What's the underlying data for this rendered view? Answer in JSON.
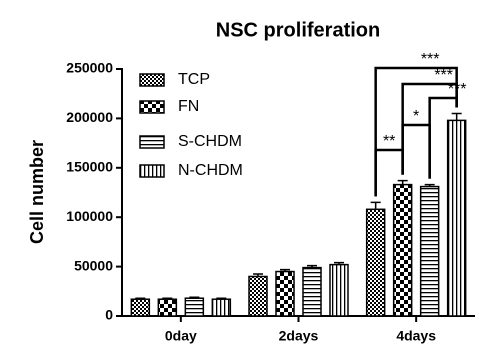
{
  "chart_data": {
    "type": "bar",
    "title": "NSC proliferation",
    "y_label": "Cell number",
    "categories": [
      "0day",
      "2days",
      "4days"
    ],
    "series": [
      {
        "name": "TCP",
        "pattern": "fine-checker",
        "values": [
          17000,
          40000,
          108000
        ],
        "errors": [
          1000,
          2500,
          7000
        ]
      },
      {
        "name": "FN",
        "pattern": "coarse-checker",
        "values": [
          17000,
          45000,
          133000
        ],
        "errors": [
          1000,
          2000,
          4000
        ]
      },
      {
        "name": "S-CHDM",
        "pattern": "horizontal-lines",
        "values": [
          18000,
          49000,
          131000
        ],
        "errors": [
          1000,
          2000,
          2000
        ]
      },
      {
        "name": "N-CHDM",
        "pattern": "vertical-lines",
        "values": [
          17000,
          52000,
          198000
        ],
        "errors": [
          1000,
          2000,
          7000
        ]
      }
    ],
    "annotations": [
      "***",
      "***",
      "***",
      "**",
      "*"
    ],
    "ylim": [
      0,
      250000
    ],
    "yticks": [
      0,
      50000,
      100000,
      150000,
      200000,
      250000
    ],
    "grid": false,
    "legend": "upper-left"
  }
}
